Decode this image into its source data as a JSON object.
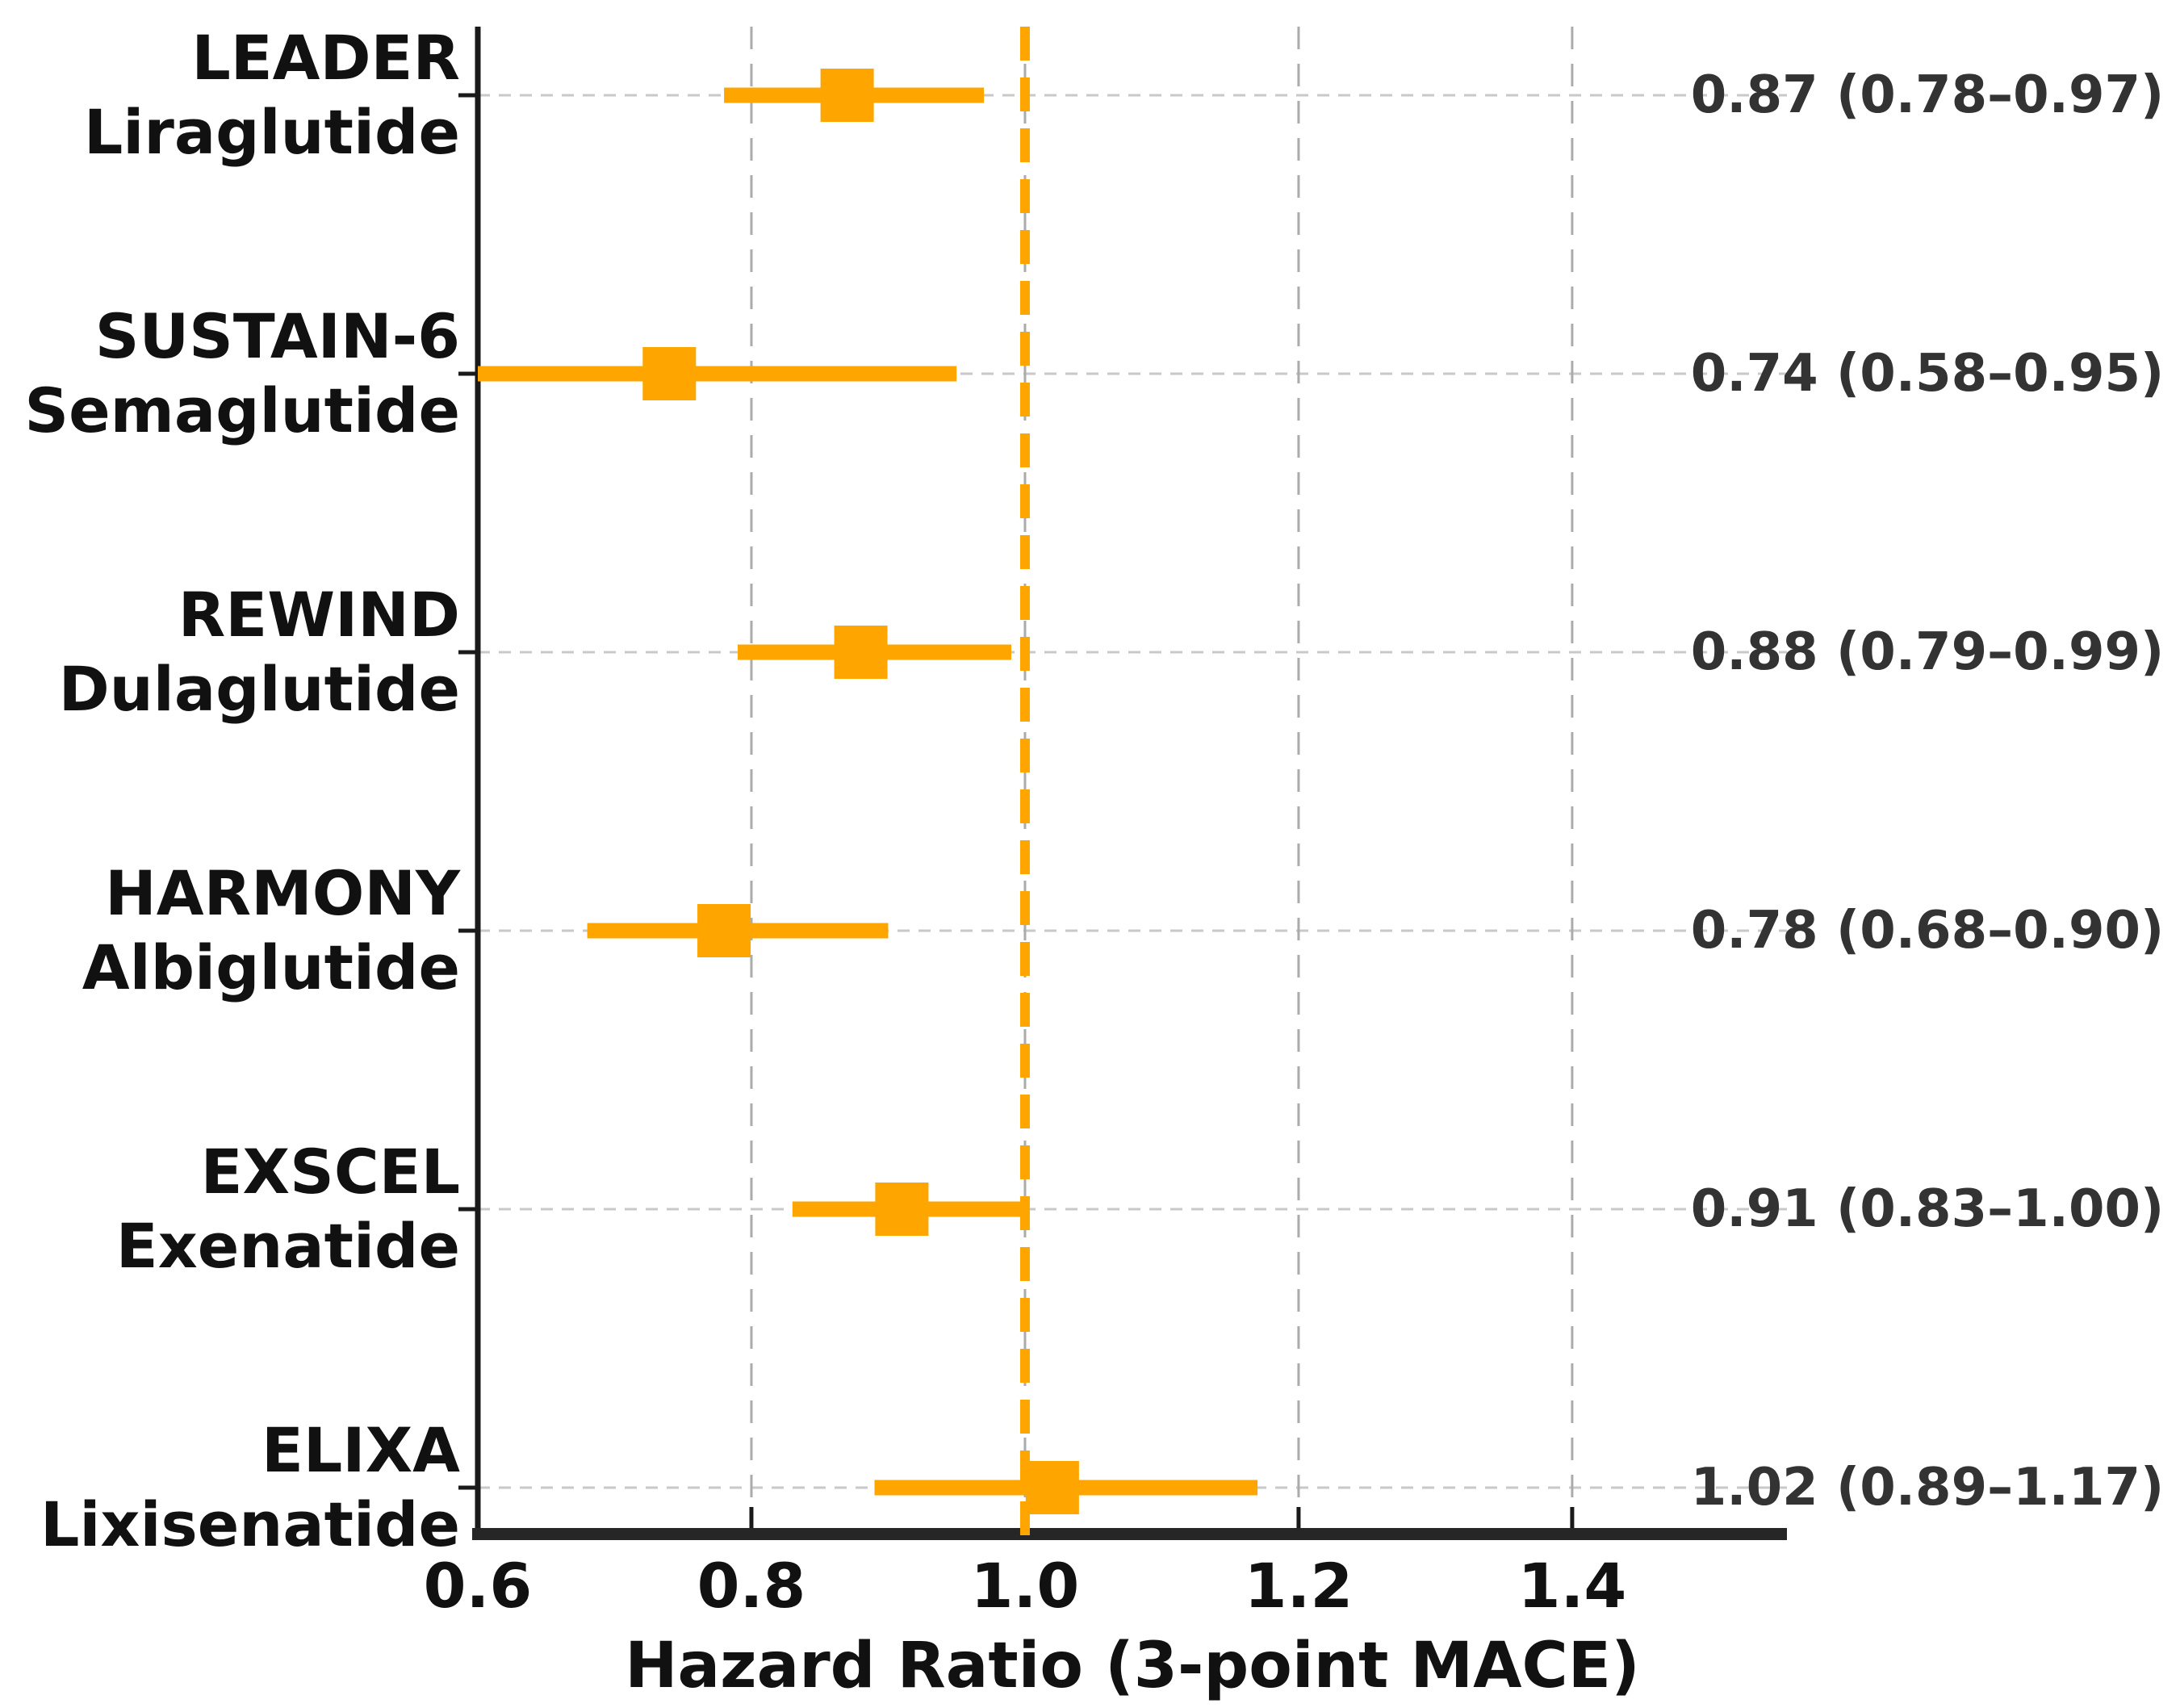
{
  "chart_data": {
    "type": "scatter",
    "subtype": "forest-plot",
    "xlabel": "Hazard Ratio (3-point MACE)",
    "xlim": [
      0.6,
      1.557
    ],
    "xticks": [
      0.6,
      0.8,
      1.0,
      1.2,
      1.4
    ],
    "xtick_labels": [
      "0.6",
      "0.8",
      "1.0",
      "1.2",
      "1.4"
    ],
    "reference_line": 1.0,
    "grid": true,
    "legend": "none",
    "studies": [
      {
        "trial": "LEADER",
        "drug": "Liraglutide",
        "hr": 0.87,
        "ci_low": 0.78,
        "ci_high": 0.97,
        "annotation": "0.87 (0.78–0.97)"
      },
      {
        "trial": "SUSTAIN-6",
        "drug": "Semaglutide",
        "hr": 0.74,
        "ci_low": 0.58,
        "ci_high": 0.95,
        "annotation": "0.74 (0.58–0.95)"
      },
      {
        "trial": "REWIND",
        "drug": "Dulaglutide",
        "hr": 0.88,
        "ci_low": 0.79,
        "ci_high": 0.99,
        "annotation": "0.88 (0.79–0.99)"
      },
      {
        "trial": "HARMONY",
        "drug": "Albiglutide",
        "hr": 0.78,
        "ci_low": 0.68,
        "ci_high": 0.9,
        "annotation": "0.78 (0.68–0.90)"
      },
      {
        "trial": "EXSCEL",
        "drug": "Exenatide",
        "hr": 0.91,
        "ci_low": 0.83,
        "ci_high": 1.0,
        "annotation": "0.91 (0.83–1.00)"
      },
      {
        "trial": "ELIXA",
        "drug": "Lixisenatide",
        "hr": 1.02,
        "ci_low": 0.89,
        "ci_high": 1.17,
        "annotation": "1.02 (0.89–1.17)"
      }
    ],
    "colors": {
      "marker": "#FFA500",
      "ci_line": "#FFA500",
      "reference_line": "#FFA500",
      "grid_horizontal": "#c9c9c9",
      "grid_vertical": "#ababab",
      "axis": "#1a1a1a",
      "label_text": "#111111",
      "annotation_text": "#333333"
    }
  }
}
